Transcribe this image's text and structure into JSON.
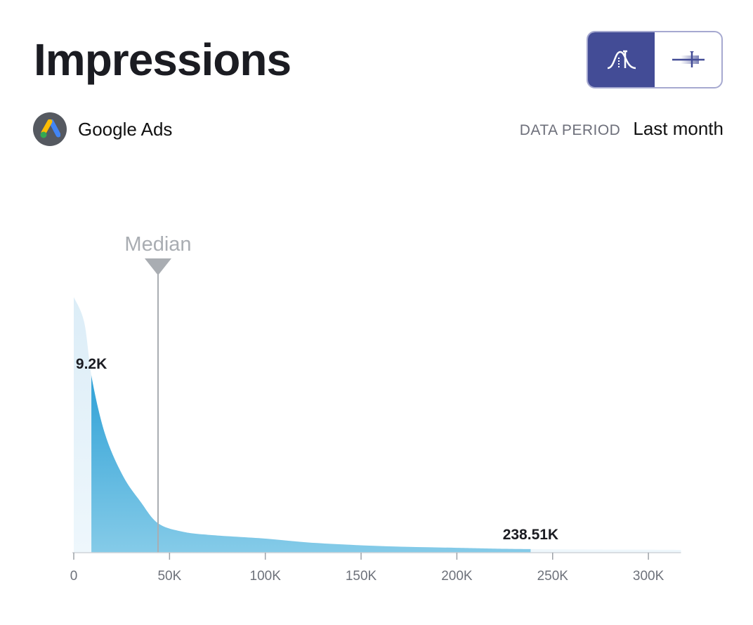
{
  "header": {
    "title": "Impressions",
    "view_toggle": [
      {
        "icon": "distribution-curve-icon",
        "active": true
      },
      {
        "icon": "box-plot-icon",
        "active": false
      }
    ]
  },
  "source": {
    "name": "Google Ads",
    "icon": "google-ads-logo"
  },
  "period": {
    "label": "DATA PERIOD",
    "value": "Last month"
  },
  "chart_data": {
    "type": "area",
    "title": "",
    "xlabel": "",
    "ylabel": "",
    "xlim": [
      0,
      317
    ],
    "x_unit": "K",
    "x_ticks": [
      0,
      50,
      100,
      150,
      200,
      250,
      300
    ],
    "x_tick_labels": [
      "0",
      "50K",
      "100K",
      "150K",
      "200K",
      "250K",
      "300K"
    ],
    "series": [
      {
        "x": [
          0,
          5.5,
          9.5,
          16.5,
          25.7,
          34.8,
          44,
          56.8,
          71.5,
          100,
          126,
          163,
          200,
          238.5,
          317
        ],
        "values": [
          1.0,
          0.9,
          0.68,
          0.46,
          0.3,
          0.2,
          0.115,
          0.082,
          0.069,
          0.055,
          0.038,
          0.025,
          0.019,
          0.014,
          0.011
        ]
      }
    ],
    "highlight_range": [
      9.2,
      238.51
    ],
    "highlight_labels": [
      "9.2K",
      "238.51K"
    ],
    "median": {
      "label": "Median",
      "value": 44
    },
    "colors": {
      "base": "#dcedf7",
      "highlight_top": "#0a8fcf",
      "highlight_bottom": "#85cbe8",
      "median": "#a9adb2"
    },
    "grid": false
  }
}
